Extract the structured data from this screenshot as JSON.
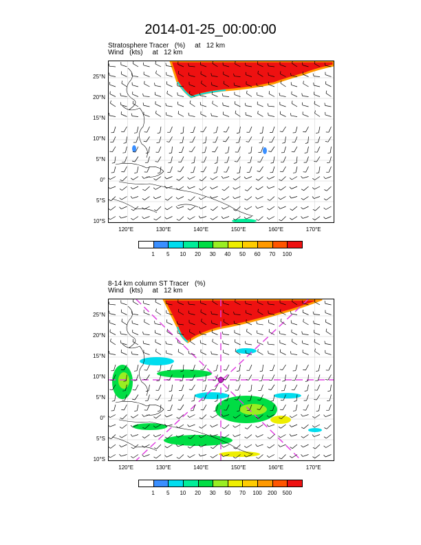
{
  "title": "2014-01-25_00:00:00",
  "panels": [
    {
      "subtitle1": "Stratosphere Tracer   (%)     at   12 km",
      "subtitle2": "Wind   (kts)     at   12 km",
      "lat_labels": [
        "25°N",
        "20°N",
        "15°N",
        "10°N",
        "5°N",
        "0°",
        "5°S",
        "10°S"
      ],
      "lon_labels": [
        "120°E",
        "130°E",
        "140°E",
        "150°E",
        "160°E",
        "170°E"
      ],
      "colorbar_labels": [
        "1",
        "5",
        "10",
        "20",
        "30",
        "40",
        "50",
        "60",
        "70",
        "100"
      ],
      "colorbar_colors": [
        "#ffffff",
        "#3a8fff",
        "#00ddee",
        "#00ee99",
        "#00dd44",
        "#99ee22",
        "#eeee00",
        "#ffcc00",
        "#ff9900",
        "#ff5500",
        "#ee1111"
      ]
    },
    {
      "subtitle1": "8-14 km column ST Tracer   (%)",
      "subtitle2": "Wind   (kts)     at   12 km",
      "lat_labels": [
        "25°N",
        "20°N",
        "15°N",
        "10°N",
        "5°N",
        "0°",
        "5°S",
        "10°S"
      ],
      "lon_labels": [
        "120°E",
        "130°E",
        "140°E",
        "150°E",
        "160°E",
        "170°E"
      ],
      "colorbar_labels": [
        "1",
        "5",
        "10",
        "20",
        "30",
        "50",
        "70",
        "100",
        "200",
        "500"
      ],
      "colorbar_colors": [
        "#ffffff",
        "#3a8fff",
        "#00ddee",
        "#00ee99",
        "#00dd44",
        "#99ee22",
        "#eeee00",
        "#ffcc00",
        "#ff9900",
        "#ff5500",
        "#ee1111"
      ]
    }
  ]
}
